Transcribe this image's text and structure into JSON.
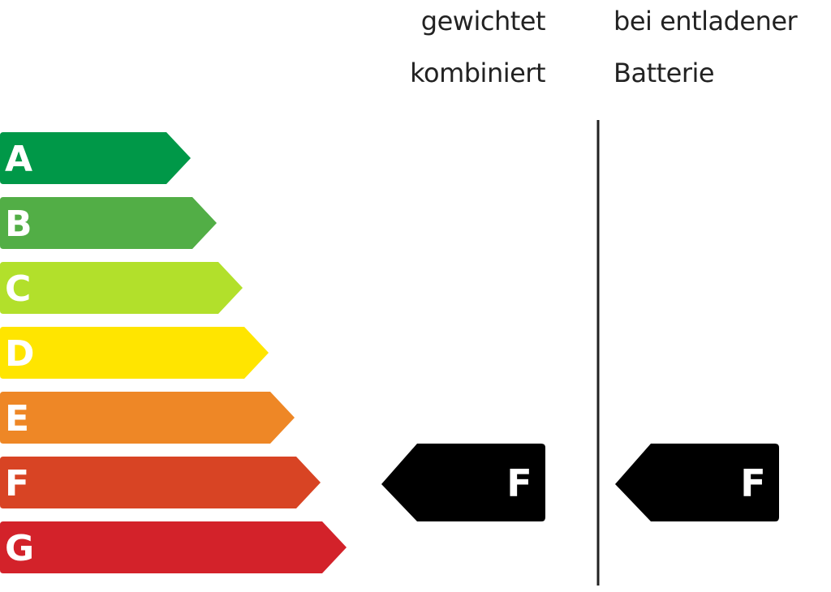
{
  "headers": {
    "weighted": [
      "gewichtet",
      "kombiniert"
    ],
    "discharged": [
      "bei entladener",
      "Batterie"
    ]
  },
  "scale": [
    {
      "label": "A",
      "color": "#009848"
    },
    {
      "label": "B",
      "color": "#52AE46"
    },
    {
      "label": "C",
      "color": "#B2E02B"
    },
    {
      "label": "D",
      "color": "#FFE500"
    },
    {
      "label": "E",
      "color": "#EE8726"
    },
    {
      "label": "F",
      "color": "#D84424"
    },
    {
      "label": "G",
      "color": "#D3222A"
    }
  ],
  "ratings": {
    "weighted": "F",
    "discharged": "F",
    "color": "#000000"
  },
  "divider_color": "#222222"
}
